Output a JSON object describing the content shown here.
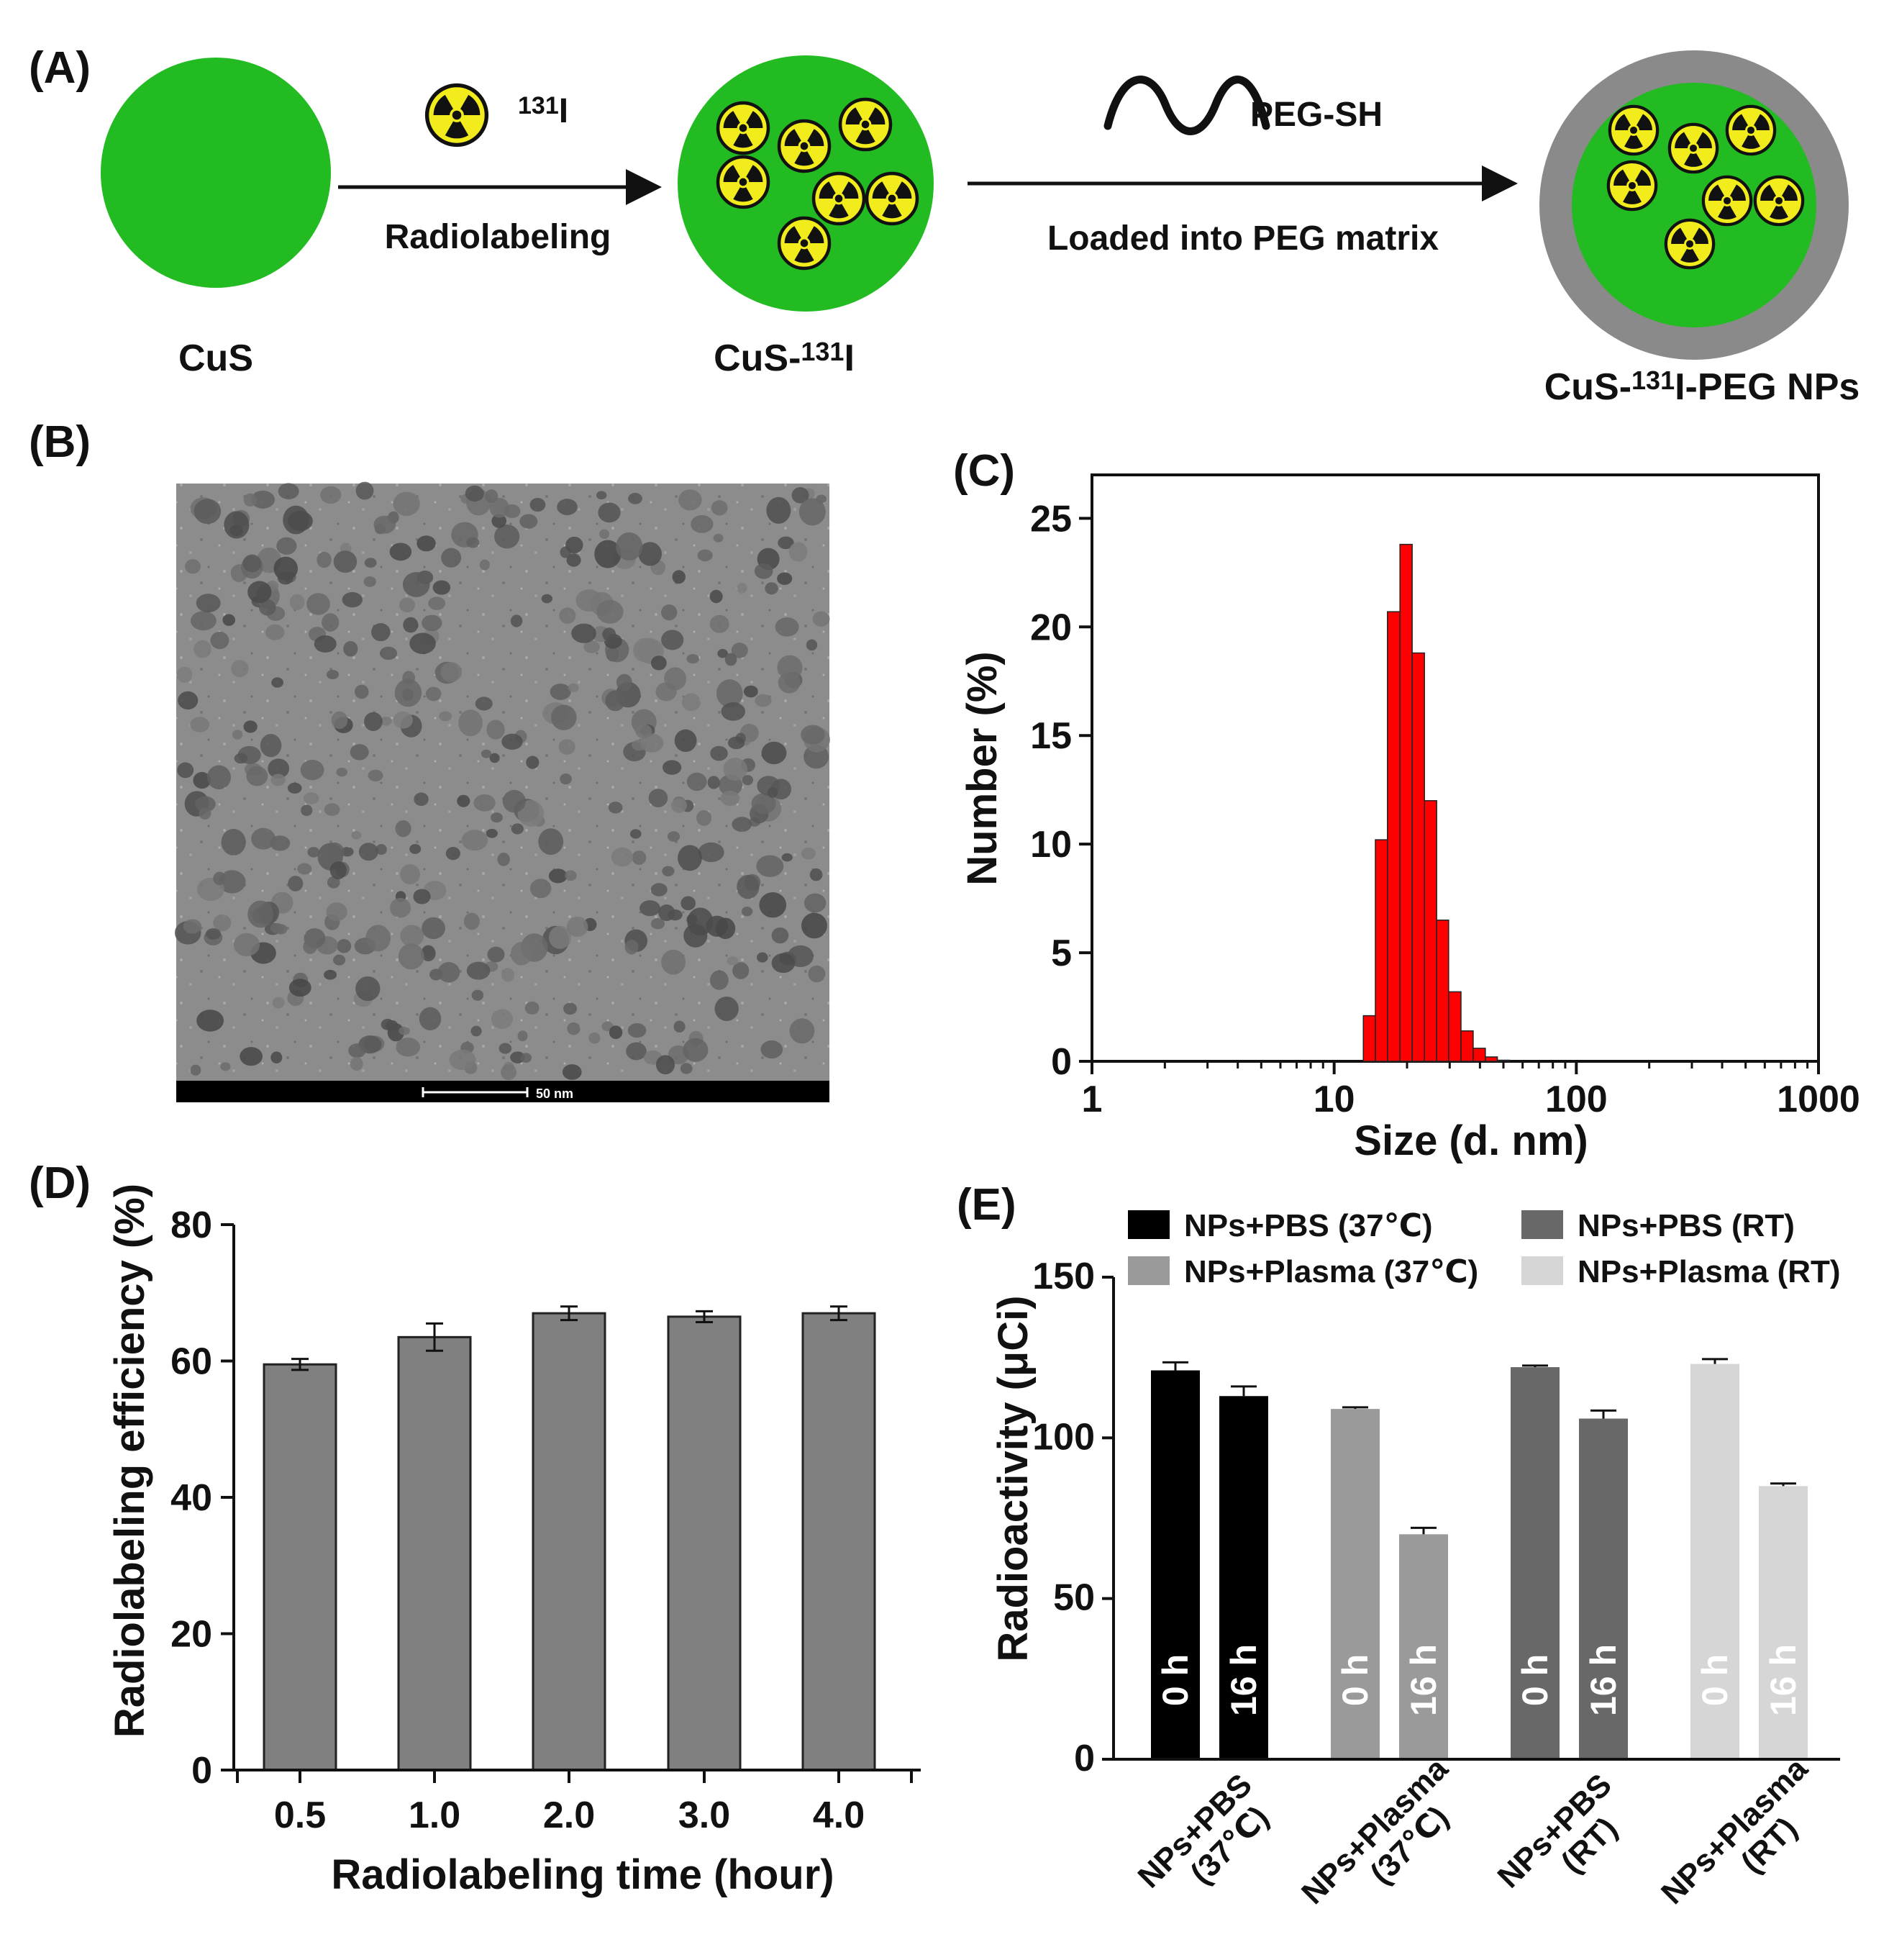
{
  "panels": {
    "A": {
      "label": "(A)",
      "step1_name": "CuS",
      "step2_name_prefix": "CuS-",
      "step2_name_sup": "131",
      "step2_name_suffix": "I",
      "step3_name_prefix": "CuS-",
      "step3_name_sup": "131",
      "step3_name_suffix": "I-PEG NPs",
      "isotope_sup": "131",
      "isotope_suffix": "I",
      "arrow1_label": "Radiolabeling",
      "arrow2_top_label": "PEG-SH",
      "arrow2_label": "Loaded into PEG matrix",
      "colors": {
        "core": "#22bb22",
        "shell": "#8a8a8a",
        "radiation": "#f2ec1c"
      },
      "icons": [
        "radiation-icon",
        "peg-chain-icon"
      ]
    },
    "B": {
      "label": "(B)",
      "scale_bar_text": "50 nm"
    },
    "C": {
      "label": "(C)",
      "chart_data": {
        "type": "bar",
        "scale_x": "log",
        "xlabel": "Size (d. nm)",
        "ylabel": "Number (%)",
        "xlim": [
          1,
          1000
        ],
        "ylim": [
          0,
          27
        ],
        "xticks": [
          "1",
          "10",
          "100",
          "1000"
        ],
        "yticks": [
          "0",
          "5",
          "10",
          "15",
          "20",
          "25"
        ],
        "bins": [
          {
            "x0": 13.2,
            "x1": 14.8,
            "y": 2.1
          },
          {
            "x0": 14.8,
            "x1": 16.6,
            "y": 10.2
          },
          {
            "x0": 16.6,
            "x1": 18.7,
            "y": 20.7
          },
          {
            "x0": 18.7,
            "x1": 21.0,
            "y": 23.8
          },
          {
            "x0": 21.0,
            "x1": 23.6,
            "y": 18.8
          },
          {
            "x0": 23.6,
            "x1": 26.5,
            "y": 12.0
          },
          {
            "x0": 26.5,
            "x1": 29.7,
            "y": 6.5
          },
          {
            "x0": 29.7,
            "x1": 33.4,
            "y": 3.2
          },
          {
            "x0": 33.4,
            "x1": 37.5,
            "y": 1.4
          },
          {
            "x0": 37.5,
            "x1": 42.1,
            "y": 0.6
          },
          {
            "x0": 42.1,
            "x1": 47.2,
            "y": 0.2
          },
          {
            "x0": 47.2,
            "x1": 53.0,
            "y": 0.05
          }
        ],
        "color": "#ff0000"
      }
    },
    "D": {
      "label": "(D)",
      "chart_data": {
        "type": "bar",
        "categories": [
          "0.5",
          "1.0",
          "2.0",
          "3.0",
          "4.0"
        ],
        "values": [
          59.5,
          63.5,
          67.0,
          66.5,
          67.0
        ],
        "errors": [
          0.8,
          2.0,
          1.0,
          0.8,
          1.0
        ],
        "xlabel": "Radiolabeling time (hour)",
        "ylabel": "Radiolabeling efficiency (%)",
        "ylim": [
          0,
          80
        ],
        "yticks": [
          "0",
          "20",
          "40",
          "60",
          "80"
        ],
        "color": "#808080"
      }
    },
    "E": {
      "label": "(E)",
      "chart_data": {
        "type": "bar",
        "ylabel": "Radioactivity (μCi)",
        "ylim": [
          0,
          150
        ],
        "yticks": [
          "0",
          "50",
          "100",
          "150"
        ],
        "groups": [
          {
            "category_line1": "NPs+PBS",
            "category_line2": "(37℃)",
            "legend": "NPs+PBS (37℃)",
            "color": "#000000",
            "text_color": "#ffffff",
            "bars": [
              {
                "time": "0 h",
                "value": 121,
                "error": 2.5
              },
              {
                "time": "16 h",
                "value": 113,
                "error": 3
              }
            ]
          },
          {
            "category_line1": "NPs+Plasma",
            "category_line2": "(37℃)",
            "legend": "NPs+Plasma (37℃)",
            "color": "#9a9a9a",
            "text_color": "#ffffff",
            "bars": [
              {
                "time": "0 h",
                "value": 109,
                "error": 0.5
              },
              {
                "time": "16 h",
                "value": 70,
                "error": 2
              }
            ]
          },
          {
            "category_line1": "NPs+PBS",
            "category_line2": "(RT)",
            "legend": "NPs+PBS (RT)",
            "color": "#686868",
            "text_color": "#ffffff",
            "bars": [
              {
                "time": "0 h",
                "value": 122,
                "error": 0.5
              },
              {
                "time": "16 h",
                "value": 106,
                "error": 2.5
              }
            ]
          },
          {
            "category_line1": "NPs+Plasma",
            "category_line2": "(RT)",
            "legend": "NPs+Plasma (RT)",
            "color": "#d6d6d6",
            "text_color": "#ffffff",
            "bars": [
              {
                "time": "0 h",
                "value": 123,
                "error": 1.5
              },
              {
                "time": "16 h",
                "value": 85,
                "error": 0.8
              }
            ]
          }
        ]
      }
    }
  }
}
